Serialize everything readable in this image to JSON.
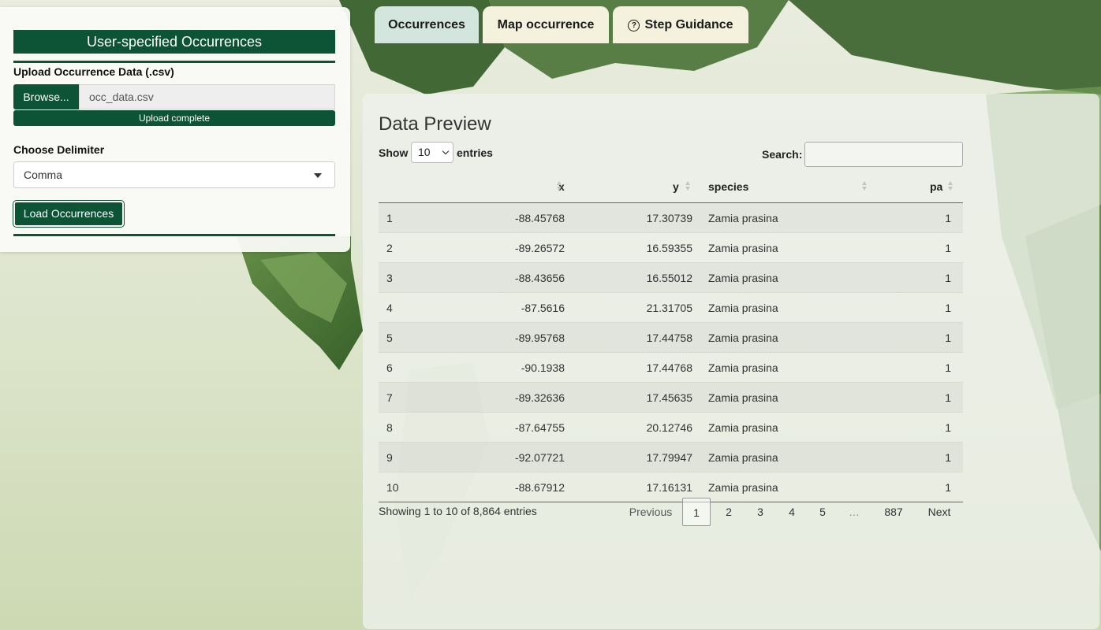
{
  "sidebar": {
    "title": "User-specified Occurrences",
    "upload_label": "Upload Occurrence Data (.csv)",
    "browse_label": "Browse...",
    "file_name": "occ_data.csv",
    "upload_status": "Upload complete",
    "upload_progress": 1.0,
    "delimiter_label": "Choose Delimiter",
    "delimiter_value": "Comma",
    "load_button": "Load Occurrences"
  },
  "tabs": [
    {
      "label": "Occurrences",
      "active": true
    },
    {
      "label": "Map occurrence",
      "active": false
    },
    {
      "label": "Step Guidance",
      "icon": "question-circle-icon",
      "active": false
    }
  ],
  "panel": {
    "title": "Data Preview",
    "show_label": "Show",
    "entries_label": "entries",
    "page_length": "10",
    "search_label": "Search:",
    "search_value": "",
    "columns": [
      "",
      "x",
      "y",
      "species",
      "pa"
    ],
    "rows": [
      {
        "idx": "1",
        "x": "-88.45768",
        "y": "17.30739",
        "species": "Zamia prasina",
        "pa": "1"
      },
      {
        "idx": "2",
        "x": "-89.26572",
        "y": "16.59355",
        "species": "Zamia prasina",
        "pa": "1"
      },
      {
        "idx": "3",
        "x": "-88.43656",
        "y": "16.55012",
        "species": "Zamia prasina",
        "pa": "1"
      },
      {
        "idx": "4",
        "x": "-87.5616",
        "y": "21.31705",
        "species": "Zamia prasina",
        "pa": "1"
      },
      {
        "idx": "5",
        "x": "-89.95768",
        "y": "17.44758",
        "species": "Zamia prasina",
        "pa": "1"
      },
      {
        "idx": "6",
        "x": "-90.1938",
        "y": "17.44768",
        "species": "Zamia prasina",
        "pa": "1"
      },
      {
        "idx": "7",
        "x": "-89.32636",
        "y": "17.45635",
        "species": "Zamia prasina",
        "pa": "1"
      },
      {
        "idx": "8",
        "x": "-87.64755",
        "y": "20.12746",
        "species": "Zamia prasina",
        "pa": "1"
      },
      {
        "idx": "9",
        "x": "-92.07721",
        "y": "17.79947",
        "species": "Zamia prasina",
        "pa": "1"
      },
      {
        "idx": "10",
        "x": "-88.67912",
        "y": "17.16131",
        "species": "Zamia prasina",
        "pa": "1"
      }
    ],
    "info": "Showing 1 to 10 of 8,864 entries",
    "pagination": {
      "previous": "Previous",
      "pages": [
        "1",
        "2",
        "3",
        "4",
        "5",
        "…",
        "887"
      ],
      "current": "1",
      "next": "Next"
    }
  },
  "colors": {
    "accent": "#0d5335",
    "active_tab": "#d3e6dd",
    "inactive_tab": "#f4f2dc"
  }
}
